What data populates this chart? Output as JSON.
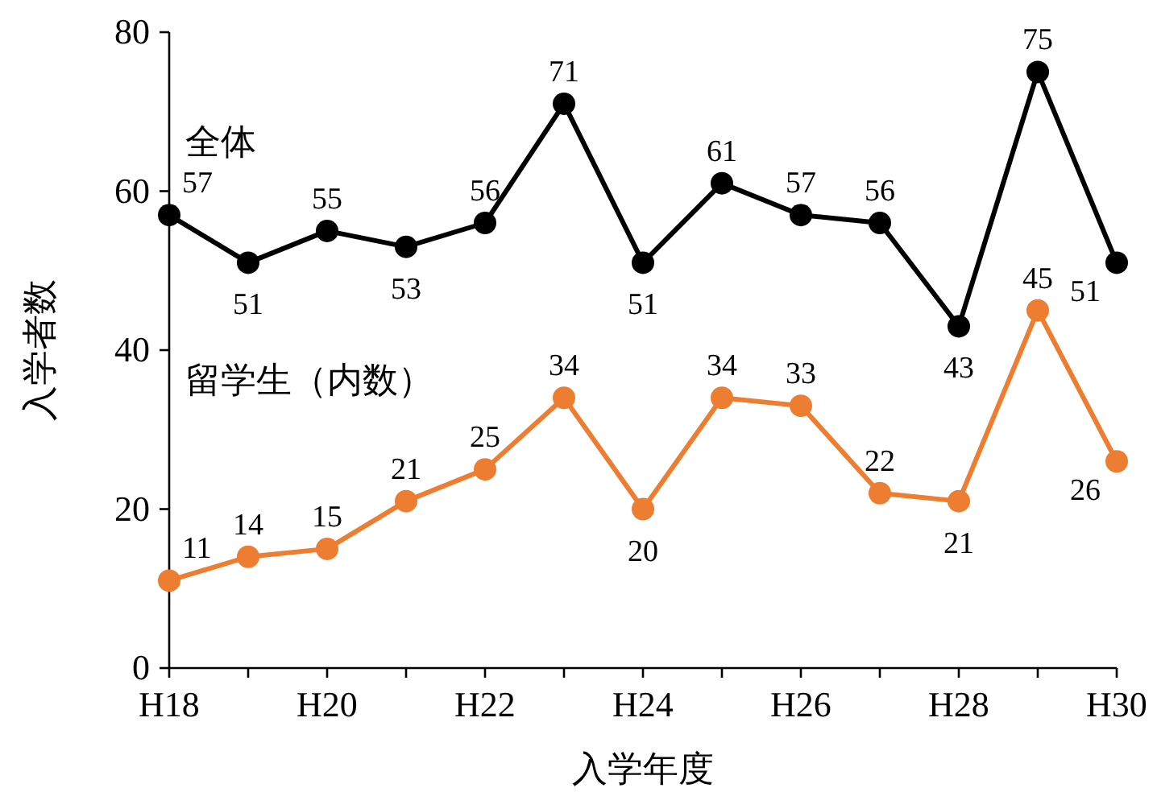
{
  "chart_data": {
    "type": "line",
    "xlabel": "入学年度",
    "ylabel": "入学者数",
    "categories": [
      "H18",
      null,
      "H20",
      null,
      "H22",
      null,
      "H24",
      null,
      "H26",
      null,
      "H28",
      null,
      "H30"
    ],
    "series": [
      {
        "name": "全体",
        "color": "#000000",
        "values": [
          57,
          51,
          55,
          53,
          56,
          71,
          51,
          61,
          57,
          56,
          43,
          75,
          51
        ]
      },
      {
        "name": "留学生（内数）",
        "color": "#ed7d31",
        "values": [
          11,
          14,
          15,
          21,
          25,
          34,
          20,
          34,
          33,
          22,
          21,
          45,
          26
        ]
      }
    ],
    "ylim": [
      0,
      80
    ],
    "yticks": [
      0,
      20,
      40,
      60,
      80
    ],
    "grid": false,
    "marker": "circle",
    "line_style": "solid",
    "data_labels": true
  }
}
